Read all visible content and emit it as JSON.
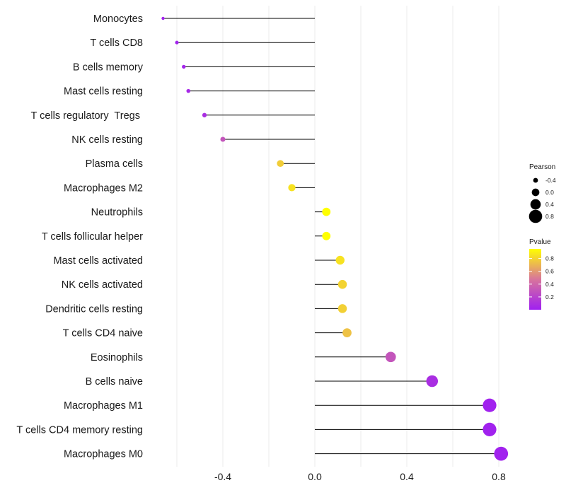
{
  "chart_data": {
    "type": "lollipop",
    "title": "",
    "xlabel": "",
    "ylabel": "",
    "xlim": [
      -0.7,
      0.85
    ],
    "x_ticks": [
      -0.4,
      0.0,
      0.4,
      0.8
    ],
    "x_tick_labels": [
      "-0.4",
      "0.0",
      "0.4",
      "0.8"
    ],
    "grid": true,
    "categories": [
      "Monocytes",
      "T cells CD8",
      "B cells memory",
      "Mast cells resting",
      "T cells regulatory  Tregs ",
      "NK cells resting",
      "Plasma cells",
      "Macrophages M2",
      "Neutrophils",
      "T cells follicular helper",
      "Mast cells activated",
      "NK cells activated",
      "Dendritic cells resting",
      "T cells CD4 naive",
      "Eosinophils",
      "B cells naive",
      "Macrophages M1",
      "T cells CD4 memory resting",
      "Macrophages M0"
    ],
    "pearson": [
      -0.66,
      -0.6,
      -0.57,
      -0.55,
      -0.48,
      -0.4,
      -0.15,
      -0.1,
      0.05,
      0.05,
      0.11,
      0.12,
      0.12,
      0.14,
      0.33,
      0.51,
      0.76,
      0.76,
      0.81
    ],
    "pvalue": [
      0.01,
      0.02,
      0.03,
      0.05,
      0.08,
      0.3,
      0.78,
      0.85,
      0.97,
      0.95,
      0.85,
      0.8,
      0.79,
      0.74,
      0.3,
      0.08,
      0.01,
      0.01,
      0.01
    ],
    "size_legend": {
      "title": "Pearson",
      "values": [
        -0.4,
        0.0,
        0.4,
        0.8
      ],
      "labels": [
        "-0.4",
        "0.0",
        "0.4",
        "0.8"
      ]
    },
    "color_legend": {
      "title": "Pvalue",
      "range": [
        0.0,
        0.95
      ],
      "ticks": [
        0.2,
        0.4,
        0.6,
        0.8
      ],
      "tick_labels": [
        "0.2",
        "0.4",
        "0.6",
        "0.8"
      ],
      "low_color": "#A020F0",
      "mid_color": "#D8749C",
      "high_color": "#FFFF00"
    },
    "stem_color": "#000000",
    "grid_color": "#EBEBEB"
  }
}
